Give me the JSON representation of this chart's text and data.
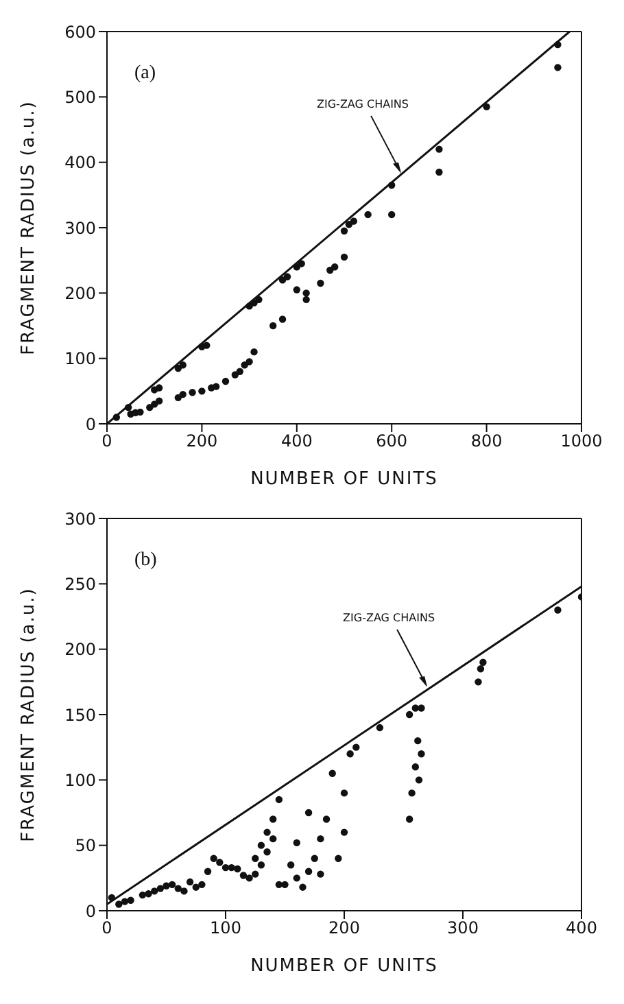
{
  "chart_data": [
    {
      "type": "scatter",
      "xlabel": "NUMBER OF UNITS",
      "ylabel": "FRAGMENT RADIUS  (a.u.)",
      "annotations": [
        "(a)",
        {
          "text": "ZIG-ZAG CHAINS",
          "x": 620,
          "y": 383
        }
      ],
      "xlim": [
        0,
        1000
      ],
      "ylim": [
        0,
        600
      ],
      "xticks": [
        0,
        200,
        400,
        600,
        800,
        1000
      ],
      "yticks": [
        0,
        100,
        200,
        300,
        400,
        500,
        600
      ],
      "series": [
        {
          "marker": "circle",
          "color": "#111111",
          "x": [
            20,
            45,
            100,
            110,
            150,
            160,
            200,
            210,
            300,
            310,
            320,
            370,
            380,
            400,
            410,
            500,
            510,
            520,
            550,
            600,
            700,
            800,
            950,
            50,
            60,
            70,
            90,
            100,
            110,
            150,
            160,
            180,
            200,
            220,
            230,
            250,
            270,
            280,
            290,
            300,
            310,
            350,
            370,
            400,
            420,
            420,
            450,
            470,
            480,
            500,
            600,
            700,
            950
          ],
          "values": [
            10,
            25,
            52,
            55,
            85,
            90,
            118,
            120,
            180,
            185,
            190,
            220,
            225,
            240,
            245,
            295,
            305,
            310,
            320,
            365,
            420,
            485,
            580,
            15,
            17,
            18,
            25,
            30,
            35,
            40,
            45,
            48,
            50,
            55,
            57,
            65,
            75,
            80,
            90,
            95,
            110,
            150,
            160,
            205,
            200,
            190,
            215,
            235,
            240,
            255,
            320,
            385,
            545
          ]
        },
        {
          "type": "line",
          "marker": "none",
          "color": "#111111",
          "x": [
            0,
            975
          ],
          "values": [
            0,
            600
          ]
        }
      ]
    },
    {
      "type": "scatter",
      "xlabel": "NUMBER OF UNITS",
      "ylabel": "FRAGMENT RADIUS  (a.u.)",
      "annotations": [
        "(b)",
        {
          "text": "ZIG-ZAG CHAINS",
          "x": 270,
          "y": 171
        }
      ],
      "xlim": [
        0,
        400
      ],
      "ylim": [
        0,
        300
      ],
      "xticks": [
        0,
        100,
        200,
        300,
        400
      ],
      "yticks": [
        0,
        50,
        100,
        150,
        200,
        250,
        300
      ],
      "series": [
        {
          "marker": "circle",
          "color": "#111111",
          "x": [
            4,
            10,
            15,
            20,
            30,
            35,
            40,
            45,
            50,
            55,
            60,
            65,
            70,
            75,
            80,
            85,
            90,
            95,
            100,
            105,
            110,
            115,
            120,
            125,
            125,
            130,
            130,
            135,
            135,
            140,
            140,
            145,
            145,
            150,
            155,
            160,
            160,
            165,
            170,
            170,
            175,
            180,
            180,
            185,
            190,
            195,
            200,
            205,
            210,
            200,
            230,
            255,
            260,
            265,
            262,
            255,
            257,
            260,
            263,
            265,
            315,
            317,
            313,
            380,
            400
          ],
          "values": [
            10,
            5,
            7,
            8,
            12,
            13,
            15,
            17,
            19,
            20,
            17,
            15,
            22,
            18,
            20,
            30,
            40,
            37,
            33,
            33,
            32,
            27,
            25,
            28,
            40,
            35,
            50,
            45,
            60,
            55,
            70,
            85,
            20,
            20,
            35,
            52,
            25,
            18,
            75,
            30,
            40,
            55,
            28,
            70,
            105,
            40,
            90,
            120,
            125,
            60,
            140,
            150,
            155,
            155,
            130,
            70,
            90,
            110,
            100,
            120,
            185,
            190,
            175,
            230,
            240
          ]
        },
        {
          "type": "line",
          "marker": "none",
          "color": "#111111",
          "x": [
            0,
            400
          ],
          "values": [
            5,
            248
          ]
        }
      ]
    }
  ]
}
